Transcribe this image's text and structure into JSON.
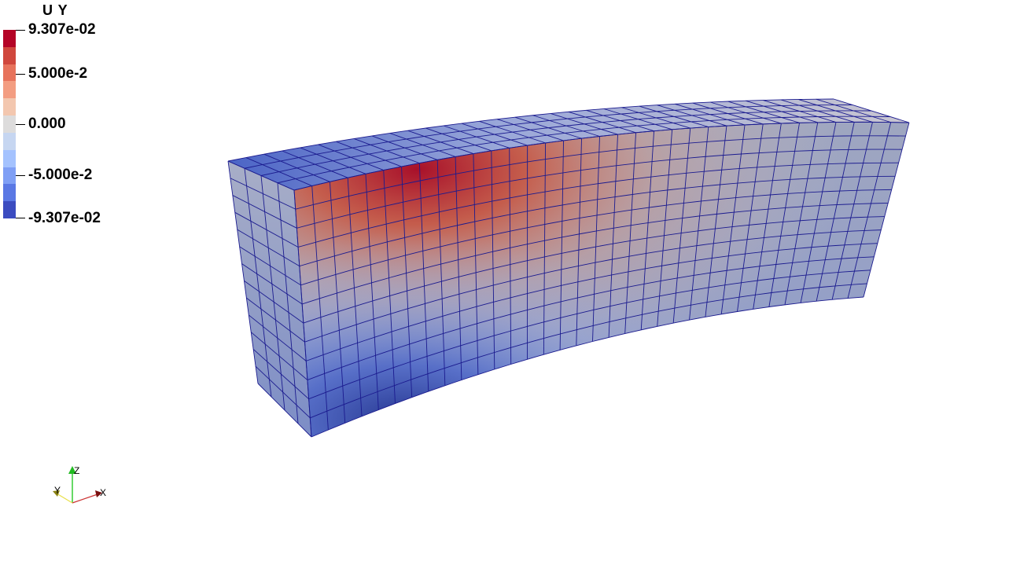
{
  "colorbar": {
    "title": "U Y",
    "max_label": "9.307e-02",
    "label_2": "5.000e-2",
    "label_3": "0.000",
    "label_4": "-5.000e-2",
    "min_label": "-9.307e-02",
    "colors": [
      "#b40426",
      "#d0473d",
      "#e7735c",
      "#f39d81",
      "#f3c7af",
      "#dddcdc",
      "#c6d6f1",
      "#a4c2fe",
      "#7f9ff5",
      "#5a78e4",
      "#3b4cc0"
    ]
  },
  "orientation_axes": {
    "x_label": "X",
    "y_label": "Y",
    "z_label": "Z"
  }
}
